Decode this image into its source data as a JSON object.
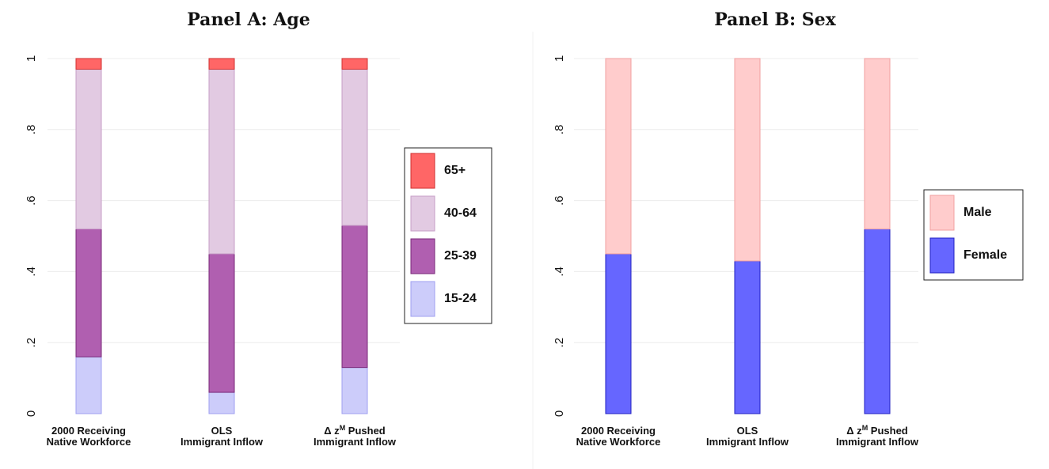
{
  "chart_data": [
    {
      "type": "bar",
      "stacked": true,
      "title": "Panel A: Age",
      "categories": [
        [
          "2000 Receiving",
          "Native Workforce"
        ],
        [
          "OLS",
          "Immigrant Inflow"
        ],
        [
          "Δ z^M Pushed",
          "Immigrant Inflow"
        ]
      ],
      "ylim": [
        0,
        1
      ],
      "yticks": [
        0,
        0.2,
        0.4,
        0.6,
        0.8,
        1
      ],
      "ytick_labels": [
        "0",
        ".2",
        ".4",
        ".6",
        ".8",
        "1"
      ],
      "grid": true,
      "legend_position": "right",
      "series": [
        {
          "name": "15-24",
          "values": [
            0.16,
            0.06,
            0.13
          ],
          "color": "#ccccfa",
          "stroke": "#9f9ff0"
        },
        {
          "name": "25-39",
          "values": [
            0.36,
            0.39,
            0.4
          ],
          "color": "#b05fb0",
          "stroke": "#7a2a7a"
        },
        {
          "name": "40-64",
          "values": [
            0.45,
            0.52,
            0.44
          ],
          "color": "#e2cae2",
          "stroke": "#c79fc7"
        },
        {
          "name": "65+",
          "values": [
            0.03,
            0.03,
            0.03
          ],
          "color": "#ff6666",
          "stroke": "#d03030"
        }
      ]
    },
    {
      "type": "bar",
      "stacked": true,
      "title": "Panel B: Sex",
      "categories": [
        [
          "2000 Receiving",
          "Native Workforce"
        ],
        [
          "OLS",
          "Immigrant Inflow"
        ],
        [
          "Δ z^M Pushed",
          "Immigrant Inflow"
        ]
      ],
      "ylim": [
        0,
        1
      ],
      "yticks": [
        0,
        0.2,
        0.4,
        0.6,
        0.8,
        1
      ],
      "ytick_labels": [
        "0",
        ".2",
        ".4",
        ".6",
        ".8",
        "1"
      ],
      "grid": true,
      "legend_position": "right",
      "series": [
        {
          "name": "Female",
          "values": [
            0.45,
            0.43,
            0.52
          ],
          "color": "#6666ff",
          "stroke": "#2020c0"
        },
        {
          "name": "Male",
          "values": [
            0.55,
            0.57,
            0.48
          ],
          "color": "#ffcccc",
          "stroke": "#f2a0a0"
        }
      ]
    }
  ]
}
